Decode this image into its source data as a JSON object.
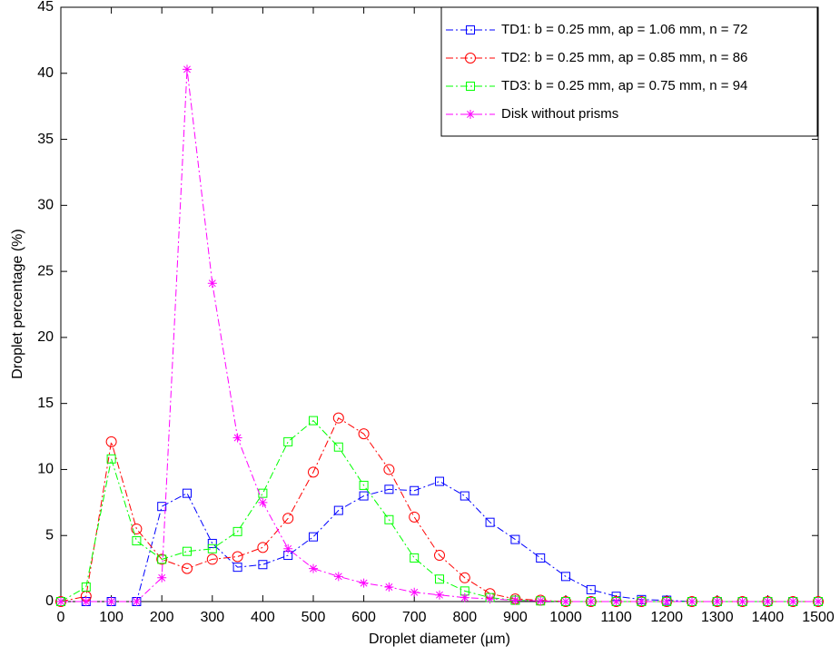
{
  "chart_data": {
    "type": "line",
    "xlabel": "Droplet diameter (µm)",
    "ylabel": "Droplet percentage (%)",
    "x": [
      0,
      50,
      100,
      150,
      200,
      250,
      300,
      350,
      400,
      450,
      500,
      550,
      600,
      650,
      700,
      750,
      800,
      850,
      900,
      950,
      1000,
      1050,
      1100,
      1150,
      1200,
      1250,
      1300,
      1350,
      1400,
      1450,
      1500
    ],
    "xlim": [
      0,
      1500
    ],
    "xticks": [
      0,
      100,
      200,
      300,
      400,
      500,
      600,
      700,
      800,
      900,
      1000,
      1100,
      1200,
      1300,
      1400,
      1500
    ],
    "ylim": [
      0,
      45
    ],
    "yticks": [
      0,
      5,
      10,
      15,
      20,
      25,
      30,
      35,
      40,
      45
    ],
    "grid": false,
    "legend_position": "upper right",
    "series": [
      {
        "name": "TD1: b = 0.25 mm, ap = 1.06 mm, n = 72",
        "color": "#0000ff",
        "marker": "square",
        "values": [
          0,
          0,
          0,
          0,
          7.2,
          8.2,
          4.4,
          2.6,
          2.8,
          3.5,
          4.9,
          6.9,
          8.0,
          8.5,
          8.4,
          9.1,
          8.0,
          6.0,
          4.7,
          3.3,
          1.9,
          0.9,
          0.4,
          0.15,
          0.1,
          0,
          0,
          0,
          0,
          0,
          0
        ]
      },
      {
        "name": "TD2: b = 0.25 mm, ap = 0.85 mm, n = 86",
        "color": "#ff0000",
        "marker": "circle",
        "values": [
          0,
          0.4,
          12.1,
          5.5,
          3.2,
          2.5,
          3.2,
          3.4,
          4.1,
          6.3,
          9.8,
          13.9,
          12.7,
          10.0,
          6.4,
          3.5,
          1.8,
          0.6,
          0.2,
          0.1,
          0,
          0,
          0,
          0,
          0,
          0,
          0,
          0,
          0,
          0,
          0
        ]
      },
      {
        "name": "TD3: b = 0.25 mm, ap = 0.75 mm, n = 94",
        "color": "#00ff00",
        "marker": "square",
        "values": [
          0,
          1.1,
          10.8,
          4.6,
          3.2,
          3.8,
          4.0,
          5.3,
          8.2,
          12.1,
          13.7,
          11.7,
          8.8,
          6.2,
          3.3,
          1.7,
          0.8,
          0.3,
          0.1,
          0.05,
          0,
          0,
          0,
          0,
          0,
          0,
          0,
          0,
          0,
          0,
          0
        ]
      },
      {
        "name": "Disk without prisms",
        "color": "#ff00ff",
        "marker": "star",
        "values": [
          0,
          0,
          0,
          0,
          1.8,
          40.3,
          24.1,
          12.4,
          7.5,
          4.0,
          2.5,
          1.9,
          1.4,
          1.1,
          0.7,
          0.5,
          0.3,
          0.2,
          0.1,
          0.05,
          0,
          0,
          0,
          0,
          0,
          0,
          0,
          0,
          0,
          0,
          0
        ]
      }
    ]
  }
}
